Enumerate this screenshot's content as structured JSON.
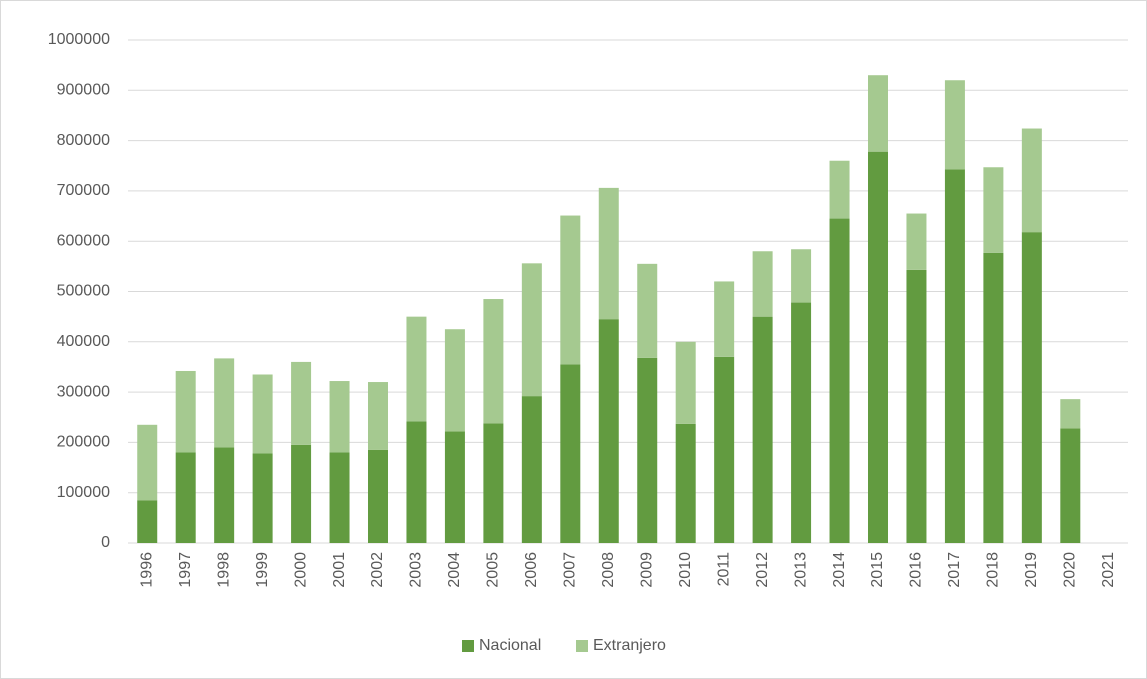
{
  "chart_data": {
    "type": "stacked_bar",
    "categories": [
      "1996",
      "1997",
      "1998",
      "1999",
      "2000",
      "2001",
      "2002",
      "2003",
      "2004",
      "2005",
      "2006",
      "2007",
      "2008",
      "2009",
      "2010",
      "2011",
      "2012",
      "2013",
      "2014",
      "2015",
      "2016",
      "2017",
      "2018",
      "2019",
      "2020",
      "2021"
    ],
    "series": [
      {
        "name": "Nacional",
        "color": "#629b40",
        "values": [
          85000,
          180000,
          190000,
          178000,
          195000,
          180000,
          185000,
          242000,
          222000,
          238000,
          292000,
          355000,
          445000,
          368000,
          237000,
          370000,
          450000,
          478000,
          645000,
          778000,
          543000,
          743000,
          577000,
          618000,
          228000,
          null
        ]
      },
      {
        "name": "Extranjero",
        "color": "#a5c990",
        "values": [
          150000,
          162000,
          177000,
          157000,
          165000,
          142000,
          135000,
          208000,
          203000,
          247000,
          264000,
          296000,
          261000,
          187000,
          163000,
          150000,
          130000,
          106000,
          115000,
          152000,
          112000,
          177000,
          170000,
          206000,
          58000,
          null
        ]
      }
    ],
    "ylim": [
      0,
      1000000
    ],
    "yticks": [
      0,
      100000,
      200000,
      300000,
      400000,
      500000,
      600000,
      700000,
      800000,
      900000,
      1000000
    ],
    "grid": true,
    "legend": "bottom"
  }
}
